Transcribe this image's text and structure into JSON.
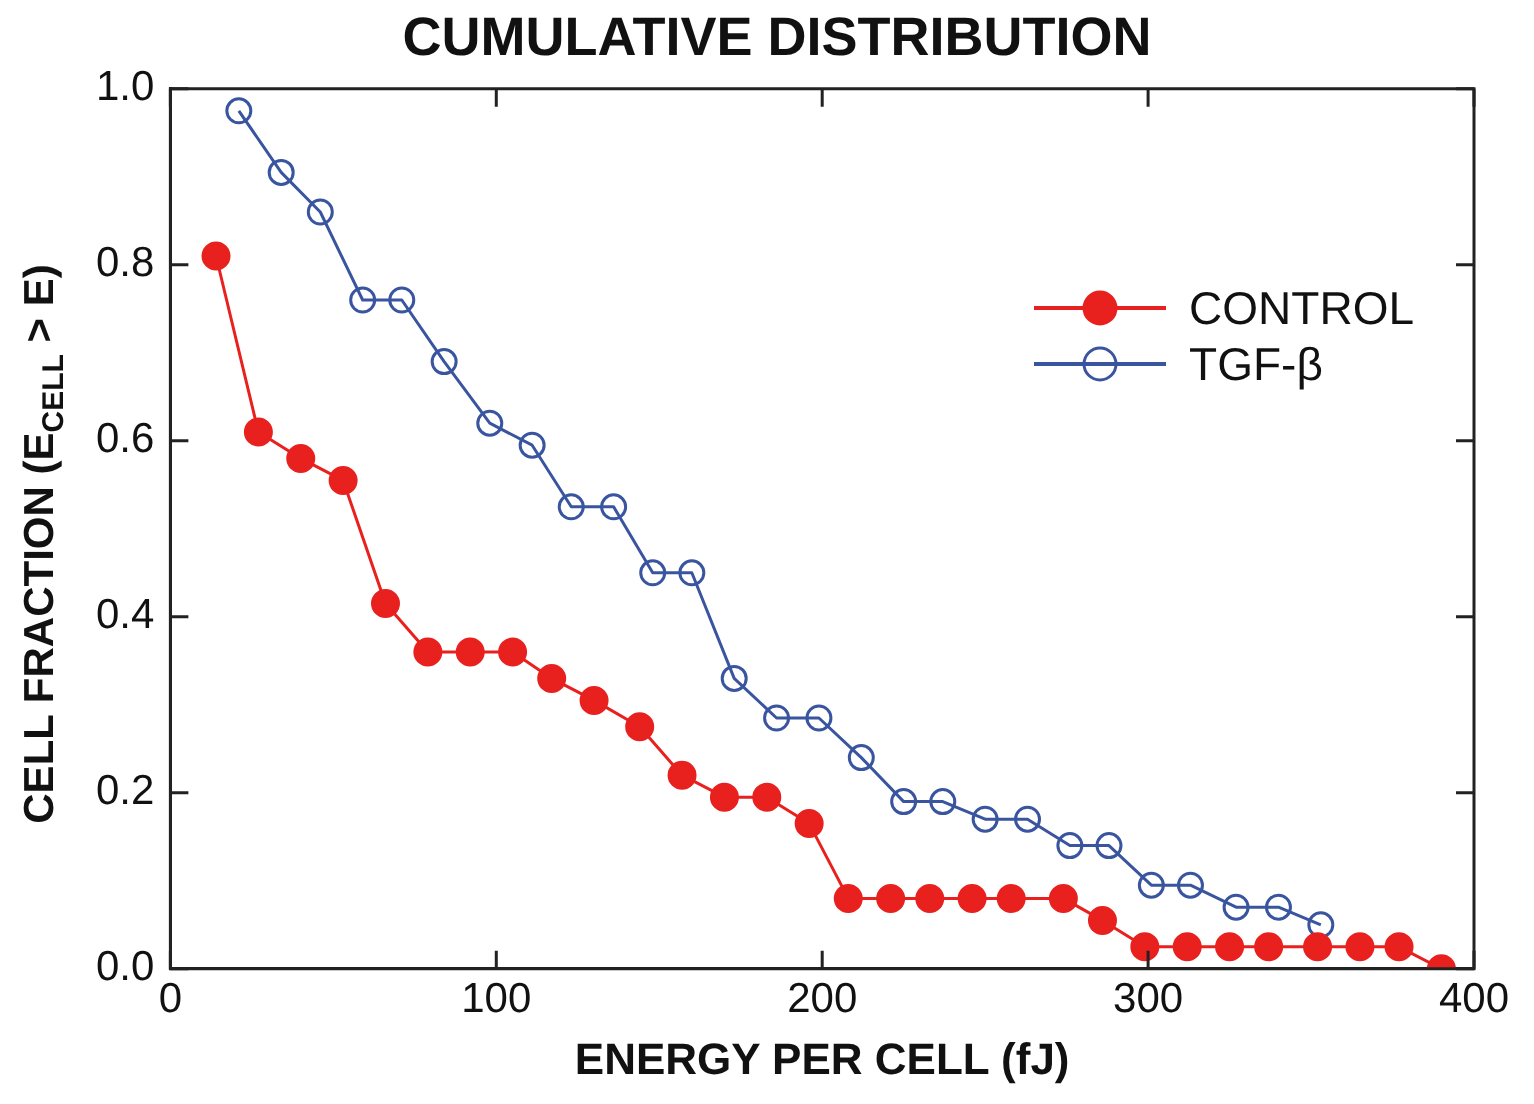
{
  "chart_data": {
    "type": "line",
    "title": "CUMULATIVE DISTRIBUTION",
    "xlabel": "ENERGY PER CELL (fJ)",
    "ylabel": "CELL FRACTION (E$_{CELL}$ > E)",
    "xlim": [
      0,
      400
    ],
    "xticks": [
      0,
      100,
      200,
      300,
      400
    ],
    "ylim": [
      0,
      1
    ],
    "yticks": [
      {
        "value": 0,
        "label": "0.0"
      },
      {
        "value": 0.2,
        "label": "0.2"
      },
      {
        "value": 0.4,
        "label": "0.4"
      },
      {
        "value": 0.6,
        "label": "0.6"
      },
      {
        "value": 0.8,
        "label": "0.8"
      },
      {
        "value": 1,
        "label": "1.0"
      }
    ],
    "grid": false,
    "legend": "top right",
    "marker": "circle",
    "line_style": "solid",
    "series": [
      {
        "name": "CONTROL",
        "color": "#e8201e",
        "x": [
          14,
          27,
          40,
          53,
          66,
          79,
          92,
          105,
          117,
          130,
          144,
          157,
          170,
          183,
          196,
          208,
          221,
          233,
          246,
          258,
          274,
          286,
          299,
          312,
          325,
          337,
          352,
          365,
          377,
          390
        ],
        "values": [
          0.81,
          0.61,
          0.58,
          0.555,
          0.415,
          0.36,
          0.36,
          0.36,
          0.33,
          0.305,
          0.275,
          0.22,
          0.195,
          0.195,
          0.165,
          0.08,
          0.08,
          0.08,
          0.08,
          0.08,
          0.08,
          0.055,
          0.025,
          0.025,
          0.025,
          0.025,
          0.025,
          0.025,
          0.025,
          0
        ]
      },
      {
        "name": "TGF-β",
        "color": "#3a55a0",
        "x": [
          21,
          34,
          46,
          59,
          71,
          84,
          98,
          111,
          123,
          136,
          148,
          160,
          173,
          186,
          199,
          212,
          225,
          237,
          250,
          263,
          276,
          288,
          301,
          313,
          327,
          340,
          353
        ],
        "values": [
          0.975,
          0.905,
          0.86,
          0.76,
          0.76,
          0.69,
          0.62,
          0.595,
          0.525,
          0.525,
          0.45,
          0.45,
          0.33,
          0.285,
          0.285,
          0.24,
          0.19,
          0.19,
          0.17,
          0.17,
          0.14,
          0.14,
          0.095,
          0.095,
          0.07,
          0.07,
          0.05
        ]
      }
    ]
  }
}
